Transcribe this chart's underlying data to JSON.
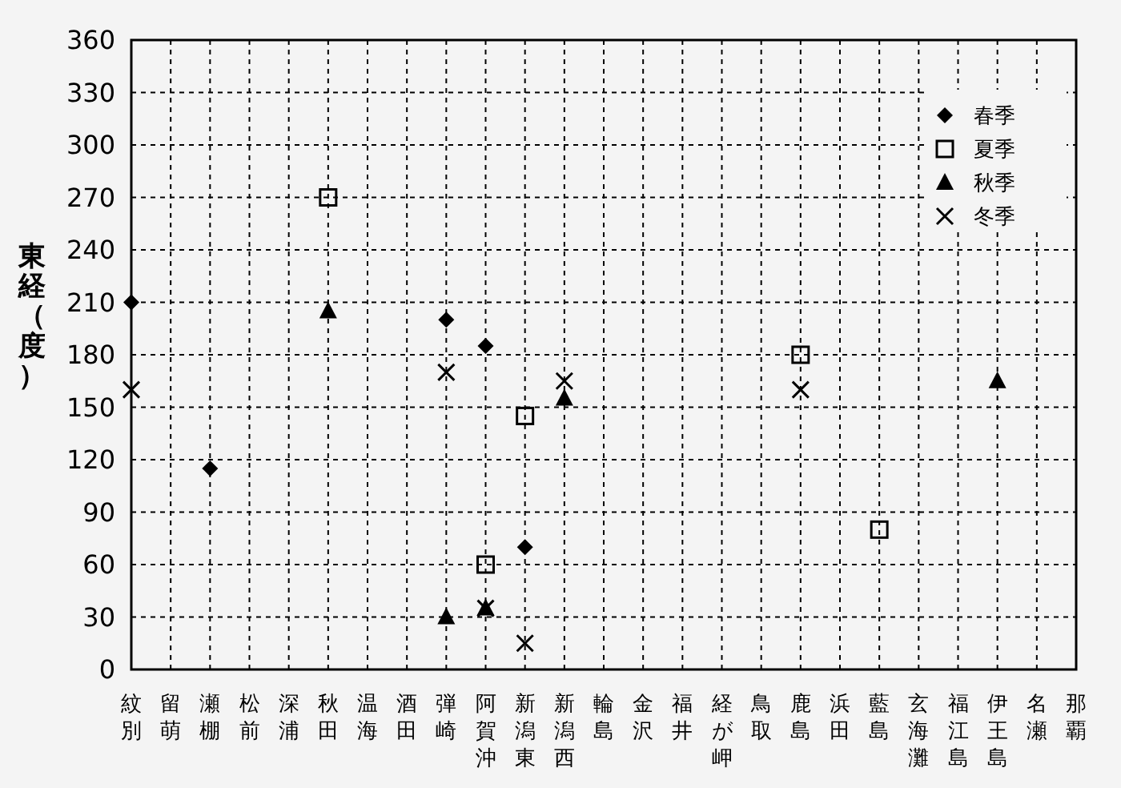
{
  "chart_data": {
    "type": "scatter",
    "ylabel": "東経（度）",
    "categories": [
      "紋別",
      "留萌",
      "瀬棚",
      "松前",
      "深浦",
      "秋田",
      "温海",
      "酒田",
      "弾崎",
      "阿賀沖",
      "新潟東",
      "新潟西",
      "輪島",
      "金沢",
      "福井",
      "経が岬",
      "鳥取",
      "鹿島",
      "浜田",
      "藍島",
      "玄海灘",
      "福江島",
      "伊王島",
      "名瀬",
      "那覇"
    ],
    "ylim": [
      0,
      360
    ],
    "yticks": [
      0,
      30,
      60,
      90,
      120,
      150,
      180,
      210,
      240,
      270,
      300,
      330,
      360
    ],
    "grid": true,
    "legend": "top right",
    "series": [
      {
        "name": "春季",
        "color": "#000000",
        "marker": "diamond",
        "values": [
          210,
          null,
          115,
          null,
          null,
          null,
          null,
          null,
          200,
          185,
          70,
          null,
          null,
          null,
          null,
          null,
          null,
          null,
          null,
          null,
          null,
          null,
          null,
          null,
          null
        ]
      },
      {
        "name": "夏季",
        "color": "#000000",
        "marker": "square",
        "values": [
          null,
          null,
          null,
          null,
          null,
          270,
          null,
          null,
          null,
          60,
          145,
          null,
          null,
          null,
          null,
          null,
          null,
          180,
          null,
          80,
          null,
          null,
          null,
          null,
          null
        ]
      },
      {
        "name": "秋季",
        "color": "#000000",
        "marker": "triangle",
        "values": [
          null,
          null,
          null,
          null,
          null,
          205,
          null,
          null,
          30,
          35,
          null,
          155,
          null,
          null,
          null,
          null,
          null,
          null,
          null,
          null,
          null,
          null,
          165,
          null,
          null
        ]
      },
      {
        "name": "冬季",
        "color": "#000000",
        "marker": "cross",
        "values": [
          160,
          null,
          null,
          null,
          null,
          null,
          null,
          null,
          170,
          35,
          15,
          165,
          null,
          null,
          null,
          null,
          null,
          160,
          null,
          null,
          null,
          null,
          null,
          null,
          null
        ]
      }
    ]
  }
}
